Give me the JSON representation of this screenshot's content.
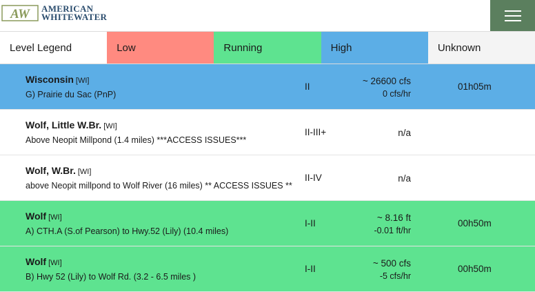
{
  "header": {
    "logo_mark_text": "AW",
    "logo_line1": "AMERICAN",
    "logo_line2": "WHITEWATER",
    "logo_colors": {
      "mark": "#8a9a5b",
      "text": "#2b4d6e"
    },
    "menu_color": "#5b7f5e"
  },
  "legend": {
    "label": "Level Legend",
    "low": "Low",
    "running": "Running",
    "high": "High",
    "unknown": "Unknown",
    "colors": {
      "low": "#ff8a80",
      "running": "#5ee390",
      "high": "#5caee6",
      "unknown": "#f4f4f4"
    }
  },
  "rivers": [
    {
      "name": "Wisconsin",
      "state": "[WI]",
      "section": "G) Prairie du Sac (PnP)",
      "class": "II",
      "level": "~ 26600 cfs",
      "delta": "0 cfs/hr",
      "updated": "01h05m",
      "status": "high"
    },
    {
      "name": "Wolf, Little W.Br.",
      "state": "[WI]",
      "section": "Above Neopit Millpond (1.4 miles) ***ACCESS ISSUES***",
      "class": "II-III+",
      "level": "n/a",
      "delta": "",
      "updated": "",
      "status": "unknown"
    },
    {
      "name": "Wolf, W.Br.",
      "state": "[WI]",
      "section": "above Neopit millpond to Wolf River (16 miles) ** ACCESS ISSUES **",
      "class": "II-IV",
      "level": "n/a",
      "delta": "",
      "updated": "",
      "status": "unknown"
    },
    {
      "name": "Wolf",
      "state": "[WI]",
      "section": "A) CTH.A (S.of Pearson) to Hwy.52 (Lily) (10.4 miles)",
      "class": "I-II",
      "level": "~ 8.16 ft",
      "delta": "-0.01 ft/hr",
      "updated": "00h50m",
      "status": "running"
    },
    {
      "name": "Wolf",
      "state": "[WI]",
      "section": "B) Hwy 52 (Lily) to Wolf Rd. (3.2 - 6.5 miles )",
      "class": "I-II",
      "level": "~ 500 cfs",
      "delta": "-5 cfs/hr",
      "updated": "00h50m",
      "status": "running"
    }
  ]
}
